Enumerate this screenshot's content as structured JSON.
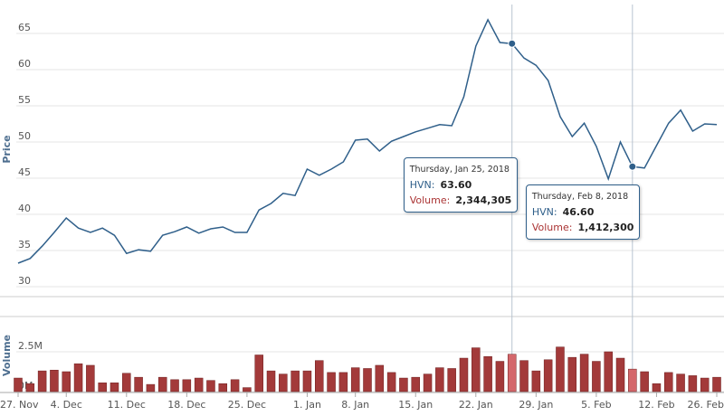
{
  "chart_data": {
    "type": "stock",
    "categories": [
      "27. Nov",
      null,
      null,
      null,
      "4. Dec",
      null,
      null,
      null,
      null,
      "11. Dec",
      null,
      null,
      null,
      null,
      "18. Dec",
      null,
      null,
      null,
      null,
      "25. Dec",
      null,
      null,
      null,
      null,
      "1. Jan",
      null,
      null,
      null,
      "8. Jan",
      null,
      null,
      null,
      null,
      "15. Jan",
      null,
      null,
      null,
      null,
      "22. Jan",
      null,
      null,
      null,
      null,
      "29. Jan",
      null,
      null,
      null,
      null,
      "5. Feb",
      null,
      null,
      null,
      null,
      "12. Feb",
      null,
      null,
      null,
      null,
      "26. Feb"
    ],
    "ylabel": "Price",
    "ylim": [
      29,
      69
    ],
    "yticks": [
      30,
      35,
      40,
      45,
      50,
      55,
      60,
      65
    ],
    "grid": true,
    "y2label": "Volume",
    "y2lim": [
      0,
      4600000
    ],
    "y2ticks": [
      {
        "value": 0,
        "label": "0M"
      },
      {
        "value": 2500000,
        "label": "2.5M"
      }
    ],
    "tooltips": [
      "Thursday, Jan 25, 2018",
      "Thursday, Feb 8, 2018"
    ],
    "series": [
      {
        "name": "HVN",
        "color": "#2f5f8a",
        "values": [
          33.25,
          33.9,
          35.6,
          37.5,
          39.5,
          38.1,
          37.5,
          38.1,
          37.1,
          34.6,
          35.1,
          34.9,
          37.1,
          37.6,
          38.25,
          37.4,
          38,
          38.25,
          37.5,
          37.5,
          40.6,
          41.5,
          42.9,
          42.6,
          46.25,
          45.4,
          46.25,
          47.25,
          50.25,
          50.4,
          48.75,
          50.1,
          50.75,
          51.4,
          51.9,
          52.4,
          52.25,
          56.25,
          63.25,
          66.9,
          63.75,
          63.6,
          61.6,
          60.6,
          58.5,
          53.5,
          50.75,
          52.6,
          49.4,
          44.9,
          50,
          46.6,
          46.4,
          49.5,
          52.6,
          54.4,
          51.5,
          52.5,
          52.4
        ],
        "value_labels": [
          null,
          null,
          null,
          null,
          null,
          null,
          null,
          null,
          null,
          null,
          null,
          null,
          null,
          null,
          null,
          null,
          null,
          null,
          null,
          null,
          null,
          null,
          null,
          null,
          null,
          null,
          null,
          null,
          null,
          null,
          null,
          null,
          null,
          null,
          null,
          null,
          null,
          null,
          null,
          null,
          null,
          "63.60",
          null,
          null,
          null,
          null,
          null,
          null,
          null,
          null,
          null,
          "46.60",
          null,
          null,
          null,
          null,
          null,
          null,
          null
        ]
      },
      {
        "name": "Volume",
        "color": "#a33a3a",
        "axis": "y2",
        "values": [
          850000,
          500000,
          1300000,
          1350000,
          1250000,
          1750000,
          1650000,
          550000,
          550000,
          1150000,
          900000,
          450000,
          900000,
          750000,
          750000,
          850000,
          700000,
          500000,
          750000,
          250000,
          2300000,
          1300000,
          1100000,
          1300000,
          1300000,
          1950000,
          1200000,
          1200000,
          1500000,
          1450000,
          1650000,
          1200000,
          850000,
          900000,
          1100000,
          1500000,
          1450000,
          2100000,
          2750000,
          2200000,
          1900000,
          2344305,
          1950000,
          1300000,
          2000000,
          2800000,
          2150000,
          2350000,
          1900000,
          2500000,
          2100000,
          1412300,
          1250000,
          500000,
          1200000,
          1100000,
          1000000,
          850000,
          900000
        ],
        "value_labels": [
          null,
          null,
          null,
          null,
          null,
          null,
          null,
          null,
          null,
          null,
          null,
          null,
          null,
          null,
          null,
          null,
          null,
          null,
          null,
          null,
          null,
          null,
          null,
          null,
          null,
          null,
          null,
          null,
          null,
          null,
          null,
          null,
          null,
          null,
          null,
          null,
          null,
          null,
          null,
          null,
          null,
          "2,344,305",
          null,
          null,
          null,
          null,
          null,
          null,
          null,
          null,
          null,
          "1,412,300",
          null,
          null,
          null,
          null,
          null,
          null,
          null
        ]
      }
    ]
  }
}
